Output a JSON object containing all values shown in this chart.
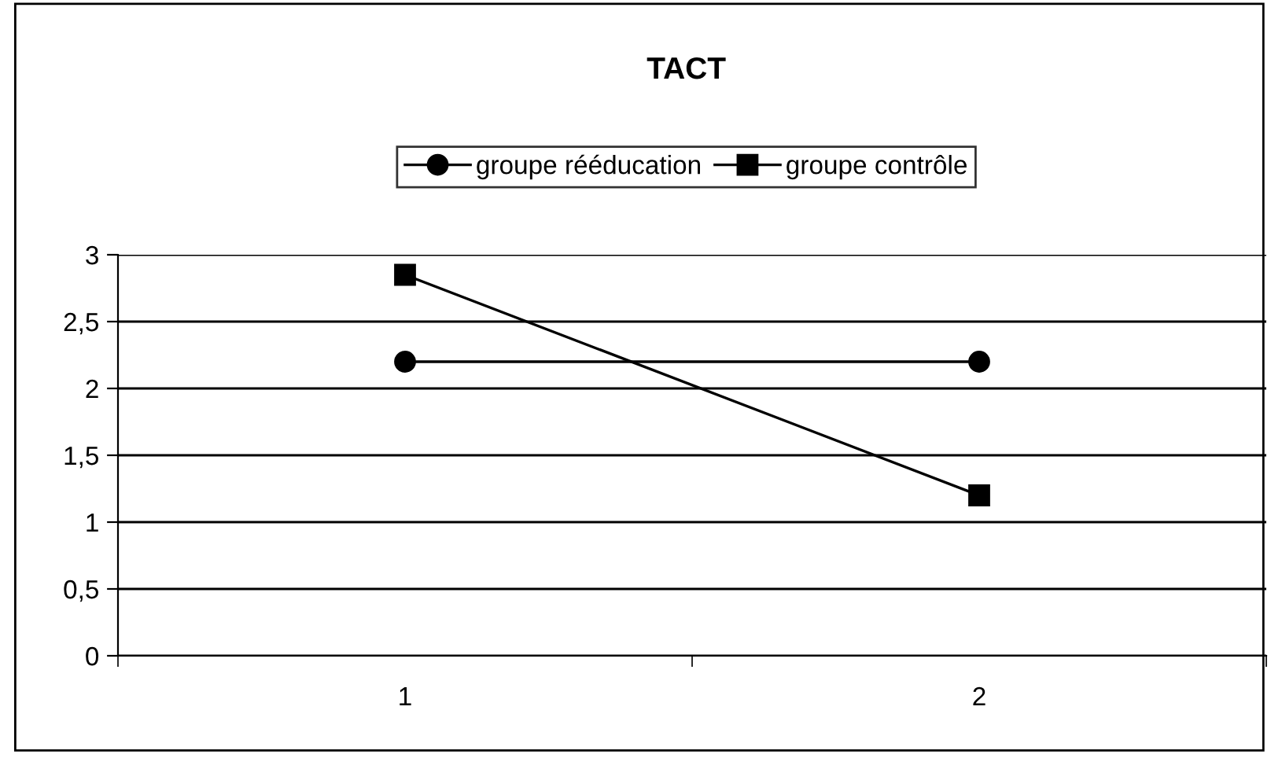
{
  "chart_data": {
    "type": "line",
    "title": "TACT",
    "categories": [
      "1",
      "2"
    ],
    "series": [
      {
        "name": "groupe rééducation",
        "color": "#000000",
        "marker": "circle",
        "values": [
          2.2,
          2.2
        ]
      },
      {
        "name": "groupe contrôle",
        "color": "#000000",
        "marker": "square",
        "values": [
          2.85,
          1.2
        ]
      }
    ],
    "ylim": [
      0,
      3
    ],
    "yticks": [
      0,
      {
        "value": 0.5,
        "label": "0,5"
      },
      1,
      {
        "value": 1.5,
        "label": "1,5"
      },
      2,
      {
        "value": 2.5,
        "label": "2,5"
      },
      3
    ],
    "grid": "y",
    "legend": "top",
    "line_style": "solid"
  }
}
